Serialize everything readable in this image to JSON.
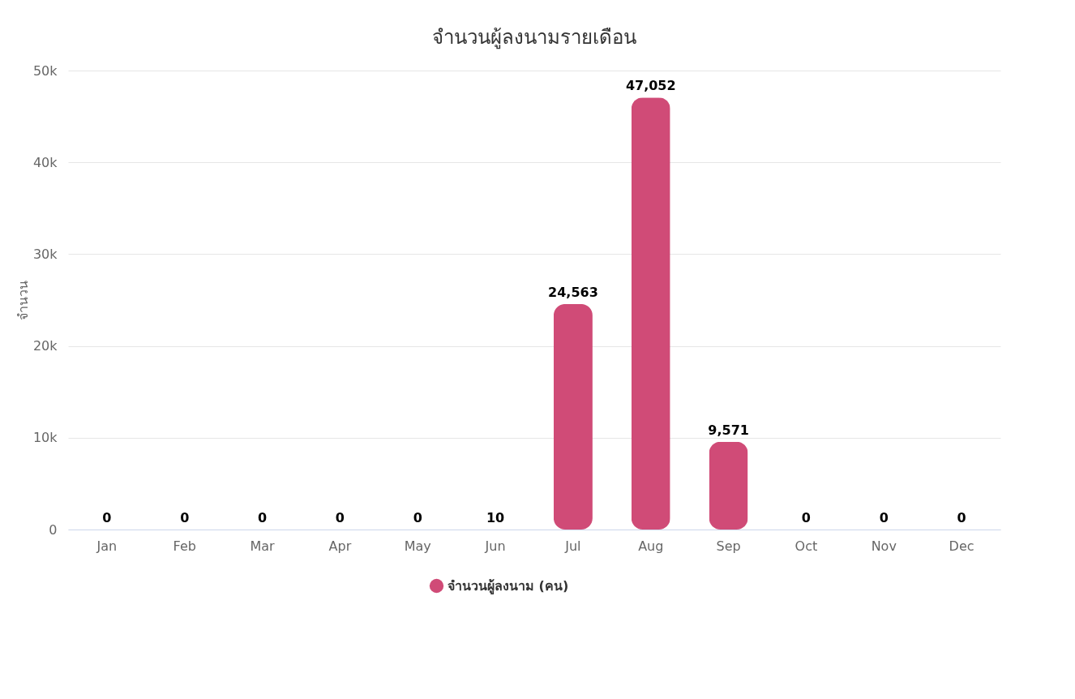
{
  "chart_data": {
    "type": "bar",
    "title": "จำนวนผู้ลงนามรายเดือน",
    "ylabel": "จำนวน",
    "categories": [
      "Jan",
      "Feb",
      "Mar",
      "Apr",
      "May",
      "Jun",
      "Jul",
      "Aug",
      "Sep",
      "Oct",
      "Nov",
      "Dec"
    ],
    "series": [
      {
        "name": "จำนวนผู้ลงนาม (คน)",
        "color": "#d04b77",
        "values": [
          0,
          0,
          0,
          0,
          0,
          10,
          24563,
          47052,
          9571,
          0,
          0,
          0
        ],
        "value_labels": [
          "0",
          "0",
          "0",
          "0",
          "0",
          "10",
          "24,563",
          "47,052",
          "9,571",
          "0",
          "0",
          "0"
        ]
      }
    ],
    "ylim": [
      0,
      50000
    ],
    "yticks": [
      {
        "value": 0,
        "label": "0"
      },
      {
        "value": 10000,
        "label": "10k"
      },
      {
        "value": 20000,
        "label": "20k"
      },
      {
        "value": 30000,
        "label": "30k"
      },
      {
        "value": 40000,
        "label": "40k"
      },
      {
        "value": 50000,
        "label": "50k"
      }
    ],
    "grid": "y",
    "legend": "bottom"
  }
}
